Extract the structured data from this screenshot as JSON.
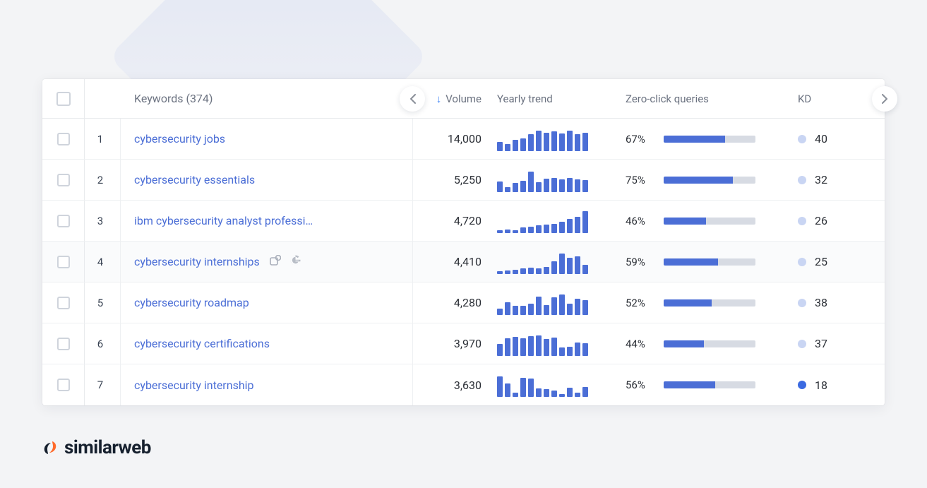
{
  "brand": {
    "name": "similarweb",
    "mark_colors": [
      "#ff6a2b",
      "#16202e"
    ]
  },
  "columns": {
    "keywords_label": "Keywords (374)",
    "volume_label": "Volume",
    "trend_label": "Yearly trend",
    "zeroclick_label": "Zero-click queries",
    "kd_label": "KD"
  },
  "styling": {
    "trend_bar_color": "#4b6ed6",
    "zero_fill_color": "#4b6ed6",
    "zero_rest_color": "#d7dbe3",
    "kd_dot_light": "#c9d5f3",
    "kd_dot_dark": "#3b6ae1",
    "link_color": "#4b6ed6"
  },
  "rows": [
    {
      "idx": "1",
      "keyword": "cybersecurity jobs",
      "volume": "14,000",
      "trend": [
        40,
        30,
        48,
        55,
        75,
        90,
        80,
        85,
        78,
        88,
        72,
        80
      ],
      "zero_pct": "67%",
      "zero_fill": 67,
      "kd": "40",
      "kd_dark": false,
      "show_icons": false
    },
    {
      "idx": "2",
      "keyword": "cybersecurity essentials",
      "volume": "5,250",
      "trend": [
        45,
        20,
        38,
        50,
        90,
        42,
        58,
        62,
        54,
        60,
        56,
        52
      ],
      "zero_pct": "75%",
      "zero_fill": 75,
      "kd": "32",
      "kd_dark": false,
      "show_icons": false
    },
    {
      "idx": "3",
      "keyword": "ibm cybersecurity analyst professi…",
      "volume": "4,720",
      "trend": [
        10,
        14,
        12,
        22,
        28,
        32,
        36,
        40,
        50,
        60,
        70,
        95
      ],
      "zero_pct": "46%",
      "zero_fill": 46,
      "kd": "26",
      "kd_dark": false,
      "show_icons": false
    },
    {
      "idx": "4",
      "keyword": "cybersecurity internships",
      "volume": "4,410",
      "trend": [
        10,
        14,
        18,
        22,
        26,
        24,
        30,
        55,
        90,
        70,
        78,
        40
      ],
      "zero_pct": "59%",
      "zero_fill": 59,
      "kd": "25",
      "kd_dark": false,
      "show_icons": true
    },
    {
      "idx": "5",
      "keyword": "cybersecurity roadmap",
      "volume": "4,280",
      "trend": [
        28,
        55,
        40,
        38,
        50,
        80,
        42,
        78,
        88,
        48,
        70,
        65
      ],
      "zero_pct": "52%",
      "zero_fill": 52,
      "kd": "38",
      "kd_dark": false,
      "show_icons": false
    },
    {
      "idx": "6",
      "keyword": "cybersecurity certifications",
      "volume": "3,970",
      "trend": [
        52,
        78,
        82,
        78,
        85,
        90,
        75,
        80,
        35,
        40,
        58,
        55
      ],
      "zero_pct": "44%",
      "zero_fill": 44,
      "kd": "37",
      "kd_dark": false,
      "show_icons": false
    },
    {
      "idx": "7",
      "keyword": "cybersecurity internship",
      "volume": "3,630",
      "trend": [
        90,
        58,
        18,
        85,
        80,
        36,
        34,
        28,
        14,
        40,
        18,
        44
      ],
      "zero_pct": "56%",
      "zero_fill": 56,
      "kd": "18",
      "kd_dark": true,
      "show_icons": false
    }
  ]
}
